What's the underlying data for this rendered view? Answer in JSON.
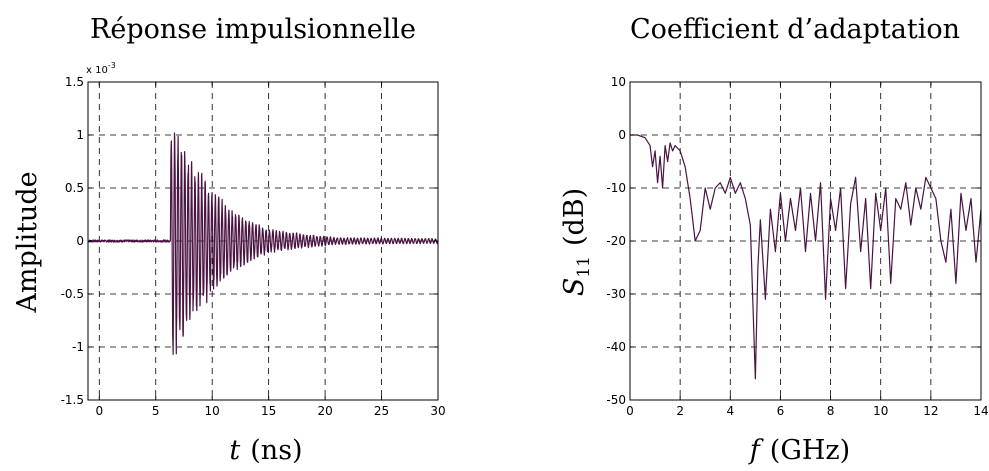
{
  "chart_data": [
    {
      "type": "line",
      "title": "Réponse impulsionnelle",
      "xlabel_var": "t",
      "xlabel_unit": "(ns)",
      "ylabel": "Amplitude",
      "exponent_base": "x 10",
      "exponent_power": "-3",
      "xlim": [
        -1,
        30
      ],
      "ylim": [
        -1.5,
        1.5
      ],
      "xticks": [
        0,
        5,
        10,
        15,
        20,
        25,
        30
      ],
      "xtick_labels": [
        "0",
        "5",
        "10",
        "15",
        "20",
        "25",
        "30"
      ],
      "yticks": [
        -1.5,
        -1,
        -0.5,
        0,
        0.5,
        1,
        1.5
      ],
      "ytick_labels": [
        "-1.5",
        "-1",
        "-0.5",
        "0",
        "0.5",
        "1",
        "1.5"
      ],
      "grid": true,
      "color": "#4a1342",
      "series": [
        {
          "signal": {
            "onset_ns": 6.3,
            "peak_amplitude": 1.08,
            "min_amplitude": -1.1,
            "oscillation_period_ns": 0.3,
            "decay_envelope": [
              [
                6.3,
                1.08
              ],
              [
                8,
                0.7
              ],
              [
                10,
                0.45
              ],
              [
                12,
                0.25
              ],
              [
                15,
                0.1
              ],
              [
                18,
                0.06
              ],
              [
                21,
                0.03
              ],
              [
                30,
                0.02
              ]
            ],
            "baseline_noise": 0.01
          }
        }
      ]
    },
    {
      "type": "line",
      "title": "Coefficient d’adaptation",
      "xlabel_var": "f",
      "xlabel_unit": "(GHz)",
      "ylabel_var": "S",
      "ylabel_sub": "11",
      "ylabel_unit": "(dB)",
      "xlim": [
        0,
        14
      ],
      "ylim": [
        -50,
        10
      ],
      "xticks": [
        0,
        2,
        4,
        6,
        8,
        10,
        12,
        14
      ],
      "xtick_labels": [
        "0",
        "2",
        "4",
        "6",
        "8",
        "10",
        "12",
        "14"
      ],
      "yticks": [
        -50,
        -40,
        -30,
        -20,
        -10,
        0,
        10
      ],
      "ytick_labels": [
        "-50",
        "-40",
        "-30",
        "-20",
        "-10",
        "0",
        "10"
      ],
      "grid": true,
      "color": "#4a1342",
      "series": [
        {
          "x": [
            0,
            0.3,
            0.6,
            0.8,
            0.9,
            1.0,
            1.1,
            1.2,
            1.3,
            1.4,
            1.5,
            1.6,
            1.7,
            1.8,
            2.0,
            2.2,
            2.4,
            2.6,
            2.8,
            3.0,
            3.2,
            3.4,
            3.6,
            3.8,
            4.0,
            4.2,
            4.4,
            4.6,
            4.8,
            5.0,
            5.1,
            5.2,
            5.4,
            5.6,
            5.8,
            6.0,
            6.2,
            6.4,
            6.6,
            6.8,
            7.0,
            7.2,
            7.4,
            7.6,
            7.8,
            8.0,
            8.2,
            8.4,
            8.6,
            8.8,
            9.0,
            9.2,
            9.4,
            9.6,
            9.8,
            10.0,
            10.2,
            10.4,
            10.6,
            10.8,
            11.0,
            11.2,
            11.4,
            11.6,
            11.8,
            12.0,
            12.2,
            12.4,
            12.6,
            12.8,
            13.0,
            13.2,
            13.4,
            13.6,
            13.8,
            14.0
          ],
          "values": [
            0,
            0,
            -0.5,
            -2,
            -6,
            -3,
            -9,
            -4,
            -10,
            -2,
            -5,
            -1.5,
            -3,
            -2,
            -3,
            -6,
            -12,
            -20,
            -18,
            -10,
            -14,
            -10,
            -9,
            -11,
            -8,
            -11,
            -9,
            -12,
            -17,
            -46,
            -25,
            -16,
            -31,
            -14,
            -22,
            -11,
            -20,
            -12,
            -18,
            -10,
            -22,
            -11,
            -20,
            -9,
            -31,
            -12,
            -18,
            -10,
            -29,
            -13,
            -8,
            -22,
            -12,
            -29,
            -11,
            -18,
            -10,
            -28,
            -12,
            -14,
            -9,
            -17,
            -10,
            -14,
            -8,
            -10,
            -12,
            -20,
            -24,
            -14,
            -28,
            -11,
            -18,
            -12,
            -24,
            -14
          ]
        }
      ]
    }
  ]
}
